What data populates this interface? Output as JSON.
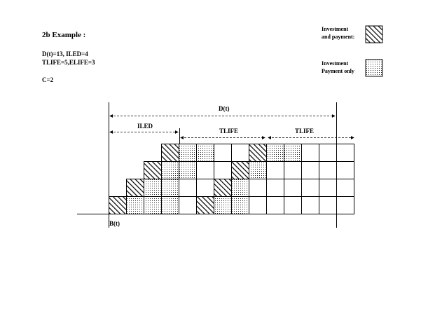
{
  "title": "2b Example :",
  "params": {
    "line1": "D(t)=13, ILED=4",
    "line2": "TLIFE=5,ELIFE=3",
    "line3": "C=2"
  },
  "legend": {
    "investment_line1": "Investment",
    "investment_line2": "and payment:",
    "payment_line1": "Investment",
    "payment_line2": "Payment only"
  },
  "labels": {
    "d": "D(t)",
    "iled": "ILED",
    "tlife1": "TLIFE",
    "tlife2": "TLIFE",
    "b": "B(t)"
  },
  "grid": {
    "columns": 14,
    "rows": 4,
    "hatched": [
      [
        0,
        0
      ],
      [
        1,
        1
      ],
      [
        2,
        2
      ],
      [
        3,
        3
      ],
      [
        5,
        0
      ],
      [
        6,
        1
      ],
      [
        7,
        2
      ],
      [
        8,
        3
      ]
    ],
    "dotted": [
      [
        1,
        0
      ],
      [
        2,
        0
      ],
      [
        3,
        0
      ],
      [
        6,
        0
      ],
      [
        7,
        0
      ],
      [
        2,
        1
      ],
      [
        3,
        1
      ],
      [
        7,
        1
      ],
      [
        3,
        2
      ],
      [
        4,
        2
      ],
      [
        7,
        2
      ],
      [
        8,
        2
      ],
      [
        4,
        3
      ],
      [
        5,
        3
      ],
      [
        9,
        3
      ],
      [
        10,
        3
      ]
    ],
    "filled_from": [
      0,
      1,
      2,
      3
    ]
  }
}
